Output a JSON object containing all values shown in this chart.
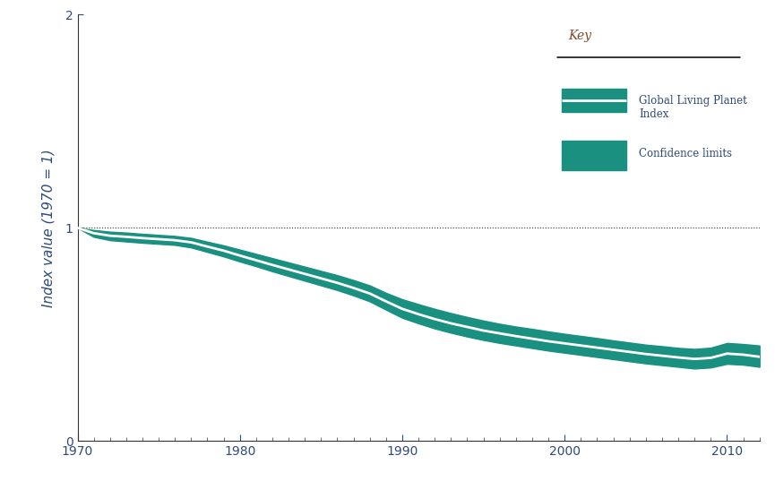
{
  "title": "",
  "ylabel": "Index value (1970 = 1)",
  "xlabel": "",
  "ylim": [
    0,
    2
  ],
  "xlim": [
    1970,
    2012
  ],
  "yticks": [
    0,
    1,
    2
  ],
  "xticks": [
    1970,
    1980,
    1990,
    2000,
    2010
  ],
  "teal_color": "#1a9080",
  "white_line_color": "#ffffff",
  "dotted_line_color": "#333333",
  "axis_text_color": "#2e4a7a",
  "ylabel_color": "#2e4a7a",
  "legend_text_color": "#2e4a7a",
  "key_title_color": "#7b4a2d",
  "key_title": "Key",
  "legend_line_label": "Global Living Planet\nIndex",
  "legend_fill_label": "Confidence limits",
  "background_color": "#ffffff",
  "lpi_line": [
    [
      1970,
      1.0
    ],
    [
      1971,
      0.975
    ],
    [
      1972,
      0.963
    ],
    [
      1973,
      0.958
    ],
    [
      1974,
      0.952
    ],
    [
      1975,
      0.947
    ],
    [
      1976,
      0.942
    ],
    [
      1977,
      0.932
    ],
    [
      1978,
      0.912
    ],
    [
      1979,
      0.893
    ],
    [
      1980,
      0.87
    ],
    [
      1981,
      0.848
    ],
    [
      1982,
      0.826
    ],
    [
      1983,
      0.805
    ],
    [
      1984,
      0.784
    ],
    [
      1985,
      0.763
    ],
    [
      1986,
      0.742
    ],
    [
      1987,
      0.718
    ],
    [
      1988,
      0.692
    ],
    [
      1989,
      0.655
    ],
    [
      1990,
      0.62
    ],
    [
      1991,
      0.595
    ],
    [
      1992,
      0.572
    ],
    [
      1993,
      0.552
    ],
    [
      1994,
      0.535
    ],
    [
      1995,
      0.518
    ],
    [
      1996,
      0.505
    ],
    [
      1997,
      0.492
    ],
    [
      1998,
      0.48
    ],
    [
      1999,
      0.468
    ],
    [
      2000,
      0.458
    ],
    [
      2001,
      0.448
    ],
    [
      2002,
      0.438
    ],
    [
      2003,
      0.428
    ],
    [
      2004,
      0.418
    ],
    [
      2005,
      0.408
    ],
    [
      2006,
      0.4
    ],
    [
      2007,
      0.392
    ],
    [
      2008,
      0.385
    ],
    [
      2009,
      0.39
    ],
    [
      2010,
      0.41
    ],
    [
      2011,
      0.405
    ],
    [
      2012,
      0.395
    ]
  ],
  "ci_upper": [
    [
      1970,
      1.0
    ],
    [
      1971,
      0.99
    ],
    [
      1972,
      0.982
    ],
    [
      1973,
      0.978
    ],
    [
      1974,
      0.972
    ],
    [
      1975,
      0.967
    ],
    [
      1976,
      0.962
    ],
    [
      1977,
      0.953
    ],
    [
      1978,
      0.935
    ],
    [
      1979,
      0.918
    ],
    [
      1980,
      0.898
    ],
    [
      1981,
      0.878
    ],
    [
      1982,
      0.858
    ],
    [
      1983,
      0.838
    ],
    [
      1984,
      0.818
    ],
    [
      1985,
      0.798
    ],
    [
      1986,
      0.778
    ],
    [
      1987,
      0.755
    ],
    [
      1988,
      0.73
    ],
    [
      1989,
      0.695
    ],
    [
      1990,
      0.665
    ],
    [
      1991,
      0.642
    ],
    [
      1992,
      0.62
    ],
    [
      1993,
      0.6
    ],
    [
      1994,
      0.582
    ],
    [
      1995,
      0.565
    ],
    [
      1996,
      0.55
    ],
    [
      1997,
      0.537
    ],
    [
      1998,
      0.526
    ],
    [
      1999,
      0.514
    ],
    [
      2000,
      0.503
    ],
    [
      2001,
      0.493
    ],
    [
      2002,
      0.483
    ],
    [
      2003,
      0.472
    ],
    [
      2004,
      0.462
    ],
    [
      2005,
      0.452
    ],
    [
      2006,
      0.445
    ],
    [
      2007,
      0.437
    ],
    [
      2008,
      0.432
    ],
    [
      2009,
      0.438
    ],
    [
      2010,
      0.46
    ],
    [
      2011,
      0.455
    ],
    [
      2012,
      0.448
    ]
  ],
  "ci_lower": [
    [
      1970,
      1.0
    ],
    [
      1971,
      0.958
    ],
    [
      1972,
      0.942
    ],
    [
      1973,
      0.936
    ],
    [
      1974,
      0.93
    ],
    [
      1975,
      0.925
    ],
    [
      1976,
      0.92
    ],
    [
      1977,
      0.908
    ],
    [
      1978,
      0.887
    ],
    [
      1979,
      0.866
    ],
    [
      1980,
      0.842
    ],
    [
      1981,
      0.82
    ],
    [
      1982,
      0.796
    ],
    [
      1983,
      0.774
    ],
    [
      1984,
      0.752
    ],
    [
      1985,
      0.73
    ],
    [
      1986,
      0.708
    ],
    [
      1987,
      0.683
    ],
    [
      1988,
      0.655
    ],
    [
      1989,
      0.616
    ],
    [
      1990,
      0.578
    ],
    [
      1991,
      0.552
    ],
    [
      1992,
      0.528
    ],
    [
      1993,
      0.508
    ],
    [
      1994,
      0.49
    ],
    [
      1995,
      0.474
    ],
    [
      1996,
      0.46
    ],
    [
      1997,
      0.448
    ],
    [
      1998,
      0.436
    ],
    [
      1999,
      0.424
    ],
    [
      2000,
      0.414
    ],
    [
      2001,
      0.404
    ],
    [
      2002,
      0.394
    ],
    [
      2003,
      0.384
    ],
    [
      2004,
      0.374
    ],
    [
      2005,
      0.364
    ],
    [
      2006,
      0.356
    ],
    [
      2007,
      0.348
    ],
    [
      2008,
      0.34
    ],
    [
      2009,
      0.345
    ],
    [
      2010,
      0.362
    ],
    [
      2011,
      0.358
    ],
    [
      2012,
      0.348
    ]
  ]
}
